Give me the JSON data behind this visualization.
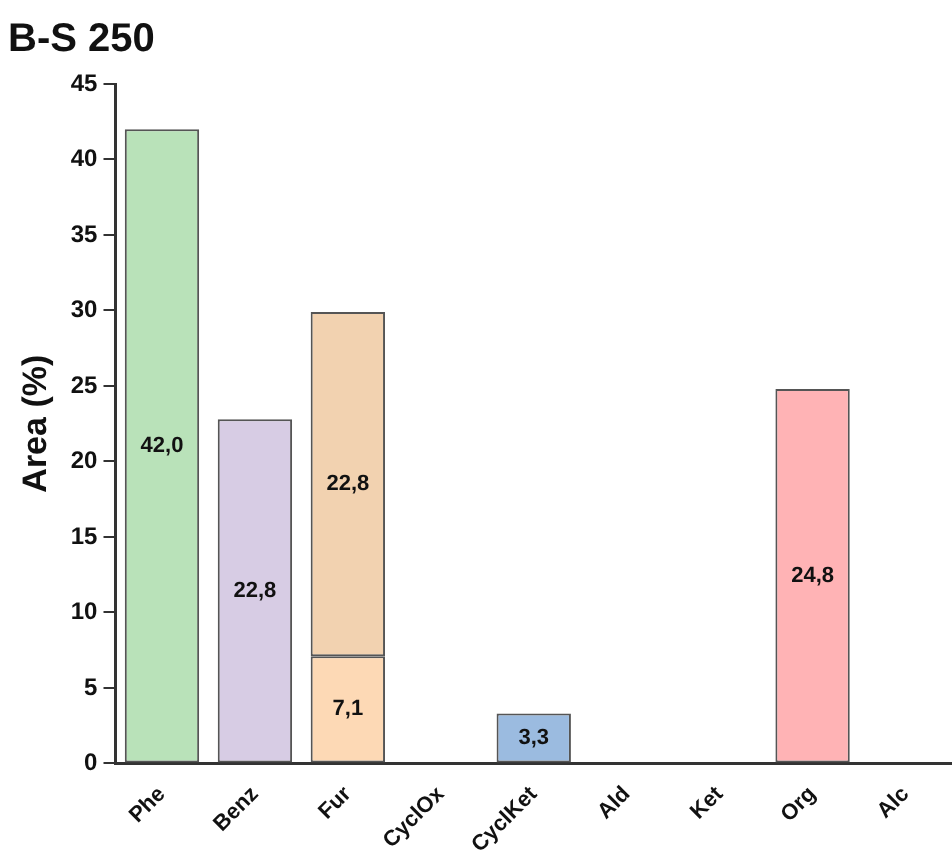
{
  "chart_data": {
    "type": "bar",
    "title": "B-S 250",
    "ylabel": "Area (%)",
    "categories": [
      "Phe",
      "Benz",
      "Fur",
      "CyclOx",
      "CyclKet",
      "Ald",
      "Ket",
      "Org",
      "Alc"
    ],
    "stacked": true,
    "ylim": [
      0,
      45
    ],
    "yticks": [
      0,
      5,
      10,
      15,
      20,
      25,
      30,
      35,
      40,
      45
    ],
    "grid": false,
    "legend": false,
    "series": [
      {
        "values": [
          42.0,
          22.8,
          7.1,
          null,
          3.3,
          null,
          null,
          24.8,
          null
        ],
        "colors": [
          "#b9e2b9",
          "#d7cce4",
          "#fdd9b5",
          null,
          "#9bbbe0",
          null,
          null,
          "#ffb3b5",
          null
        ],
        "value_labels": [
          "42,0",
          "22,8",
          "7,1",
          null,
          "3,3",
          null,
          null,
          "24,8",
          null
        ]
      },
      {
        "values": [
          null,
          null,
          22.8,
          null,
          null,
          null,
          null,
          null,
          null
        ],
        "colors": [
          null,
          null,
          "#f2d2b0",
          null,
          null,
          null,
          null,
          null,
          null
        ],
        "value_labels": [
          null,
          null,
          "22,8",
          null,
          null,
          null,
          null,
          null,
          null
        ]
      }
    ]
  }
}
